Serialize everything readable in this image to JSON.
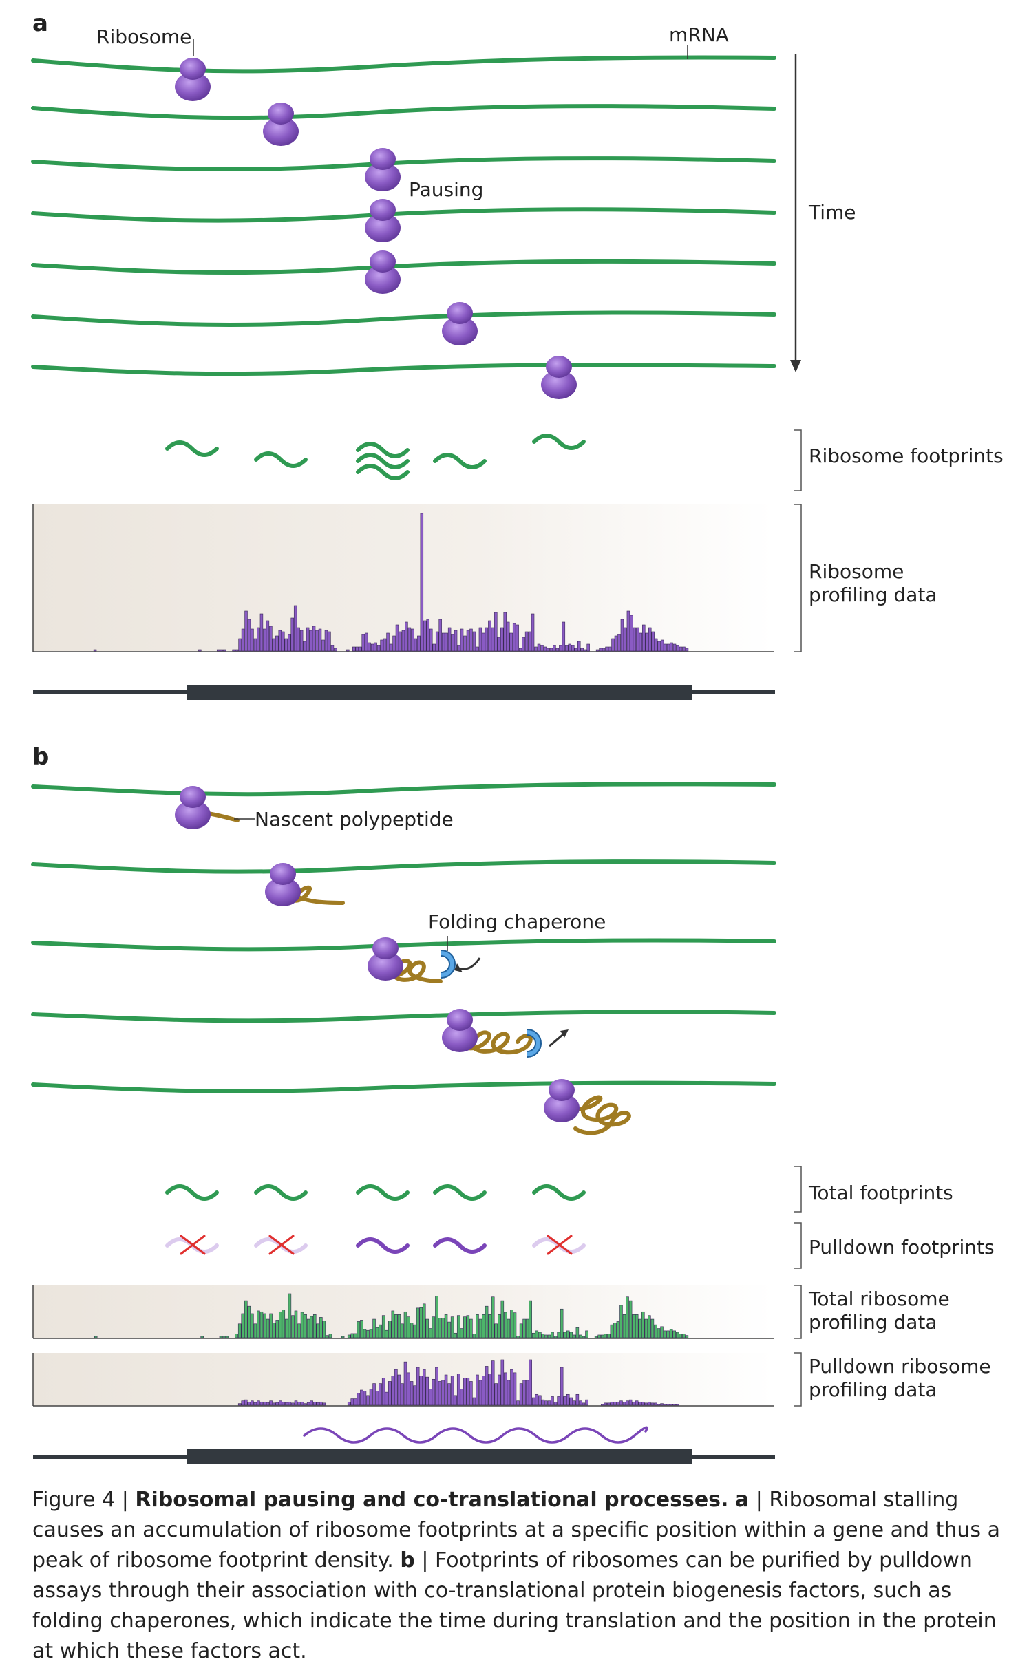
{
  "panel_a": {
    "letter": "a",
    "labels": {
      "ribosome": "Ribosome",
      "mrna": "mRNA",
      "pausing": "Pausing",
      "time": "Time",
      "ribosome_footprints": "Ribosome footprints",
      "profiling_line1": "Ribosome",
      "profiling_line2": "profiling data"
    },
    "profile_values": [
      0,
      0,
      0,
      0,
      0,
      0,
      0,
      0,
      0,
      0,
      0,
      0,
      0,
      0,
      0,
      0,
      0,
      1,
      0,
      0,
      0,
      0,
      0,
      0,
      0,
      0,
      0,
      0,
      0,
      0,
      0,
      0,
      0,
      0,
      0,
      0,
      0,
      0,
      0,
      0,
      0,
      0,
      0,
      0,
      0,
      0,
      0,
      0,
      0,
      0,
      0,
      1,
      0,
      0,
      0,
      0,
      0,
      1,
      1,
      1,
      0,
      0,
      1,
      1,
      9,
      16,
      29,
      23,
      16,
      9,
      17,
      27,
      16,
      22,
      18,
      9,
      11,
      15,
      14,
      9,
      12,
      24,
      33,
      17,
      15,
      7,
      17,
      15,
      18,
      15,
      16,
      8,
      15,
      14,
      4,
      2,
      0,
      0,
      0,
      1,
      0,
      3,
      3,
      3,
      12,
      13,
      6,
      5,
      6,
      4,
      8,
      9,
      13,
      5,
      11,
      19,
      14,
      15,
      21,
      17,
      16,
      9,
      11,
      100,
      22,
      23,
      16,
      5,
      14,
      23,
      13,
      13,
      17,
      12,
      15,
      4,
      16,
      11,
      15,
      16,
      14,
      3,
      17,
      13,
      17,
      22,
      17,
      28,
      10,
      17,
      28,
      21,
      13,
      20,
      19,
      2,
      10,
      14,
      14,
      27,
      3,
      5,
      4,
      3,
      2,
      2,
      4,
      2,
      4,
      21,
      4,
      5,
      4,
      2,
      7,
      2,
      1,
      5,
      0,
      0,
      1,
      2,
      2,
      3,
      3,
      9,
      11,
      12,
      23,
      17,
      29,
      26,
      17,
      17,
      13,
      19,
      13,
      17,
      14,
      9,
      7,
      8,
      5,
      5,
      6,
      5,
      4,
      3,
      3,
      2,
      0
    ]
  },
  "panel_b": {
    "letter": "b",
    "labels": {
      "nascent_polypeptide": "Nascent polypeptide",
      "folding_chaperone": "Folding chaperone",
      "total_footprints": "Total footprints",
      "pulldown_footprints": "Pulldown footprints",
      "total_profiling_line1": "Total ribosome",
      "total_profiling_line2": "profiling data",
      "pulldown_profiling_line1": "Pulldown ribosome",
      "pulldown_profiling_line2": "profiling data"
    },
    "total_profile_values": [
      0,
      0,
      0,
      0,
      0,
      0,
      0,
      0,
      0,
      0,
      0,
      0,
      0,
      0,
      0,
      0,
      0,
      3,
      0,
      0,
      0,
      0,
      0,
      0,
      0,
      0,
      0,
      0,
      0,
      0,
      0,
      0,
      0,
      0,
      0,
      0,
      0,
      0,
      0,
      0,
      0,
      0,
      0,
      0,
      0,
      0,
      0,
      0,
      0,
      0,
      0,
      3,
      0,
      0,
      0,
      0,
      0,
      3,
      3,
      3,
      0,
      0,
      8,
      30,
      52,
      80,
      68,
      52,
      30,
      58,
      56,
      52,
      40,
      52,
      32,
      38,
      56,
      60,
      40,
      95,
      48,
      58,
      30,
      55,
      50,
      40,
      46,
      50,
      30,
      44,
      36,
      5,
      8,
      0,
      0,
      0,
      3,
      0,
      6,
      9,
      9,
      35,
      38,
      18,
      16,
      18,
      40,
      22,
      28,
      48,
      16,
      36,
      58,
      50,
      50,
      30,
      56,
      45,
      32,
      28,
      64,
      65,
      73,
      40,
      20,
      45,
      90,
      42,
      42,
      50,
      34,
      45,
      10,
      48,
      20,
      45,
      48,
      40,
      8,
      50,
      40,
      50,
      68,
      50,
      88,
      30,
      50,
      80,
      55,
      40,
      60,
      54,
      4,
      30,
      40,
      40,
      80,
      10,
      15,
      12,
      8,
      6,
      6,
      12,
      4,
      12,
      62,
      12,
      15,
      12,
      6,
      22,
      6,
      3,
      15,
      0,
      0,
      3,
      6,
      6,
      8,
      8,
      28,
      32,
      35,
      70,
      50,
      88,
      80,
      50,
      50,
      40,
      56,
      40,
      48,
      40,
      28,
      20,
      24,
      15,
      15,
      18,
      15,
      12,
      8,
      8,
      5,
      0
    ],
    "pulldown_profile_values": [
      0,
      0,
      0,
      0,
      0,
      0,
      0,
      0,
      0,
      0,
      0,
      0,
      0,
      0,
      0,
      0,
      0,
      0,
      0,
      0,
      0,
      0,
      0,
      0,
      0,
      0,
      0,
      0,
      0,
      0,
      0,
      0,
      0,
      0,
      0,
      0,
      0,
      0,
      0,
      0,
      0,
      0,
      0,
      0,
      0,
      0,
      0,
      0,
      0,
      0,
      0,
      0,
      0,
      0,
      0,
      0,
      0,
      0,
      0,
      0,
      0,
      0,
      0,
      3,
      8,
      10,
      6,
      8,
      5,
      8,
      6,
      6,
      5,
      8,
      4,
      5,
      8,
      6,
      5,
      6,
      4,
      8,
      6,
      6,
      3,
      5,
      8,
      6,
      5,
      6,
      4,
      0,
      0,
      0,
      0,
      0,
      0,
      0,
      6,
      12,
      12,
      22,
      28,
      26,
      18,
      30,
      40,
      26,
      40,
      50,
      24,
      44,
      54,
      66,
      56,
      40,
      80,
      60,
      44,
      36,
      70,
      54,
      66,
      52,
      30,
      48,
      70,
      44,
      46,
      56,
      40,
      54,
      18,
      58,
      30,
      50,
      50,
      44,
      14,
      56,
      46,
      54,
      72,
      58,
      82,
      40,
      56,
      84,
      60,
      46,
      66,
      60,
      8,
      40,
      46,
      46,
      84,
      14,
      20,
      18,
      10,
      8,
      8,
      16,
      6,
      16,
      70,
      16,
      20,
      14,
      8,
      20,
      8,
      4,
      10,
      0,
      0,
      0,
      0,
      2,
      4,
      4,
      6,
      6,
      6,
      8,
      6,
      8,
      10,
      6,
      8,
      6,
      6,
      4,
      6,
      4,
      4,
      2,
      3,
      2,
      2,
      2,
      2,
      2,
      0,
      0,
      0,
      0
    ]
  },
  "caption": {
    "prefix": "Figure 4 | ",
    "title": "Ribosomal pausing and co-translational processes.",
    "a_label": "a",
    "a_text": " | Ribosomal stalling causes an accumulation of ribosome footprints at a specific position within a gene and thus a peak of ribosome footprint density. ",
    "b_label": "b",
    "b_text": " | Footprints of ribosomes can be purified by pulldown assays through their association with co-translational protein biogenesis factors, such as folding chaperones, which indicate the time during translation and the position in the protein at which these factors act."
  },
  "colors": {
    "mrna_green": "#2f9a52",
    "ribosome_purple": "#8a5bc4",
    "bar_purple": "#8a5bc4",
    "bar_green": "#4db56a",
    "gene_dark": "#33393f",
    "polypeptide_brown": "#a07b22",
    "chaperone_blue": "#3a86c8",
    "cross_red": "#e0302f"
  }
}
